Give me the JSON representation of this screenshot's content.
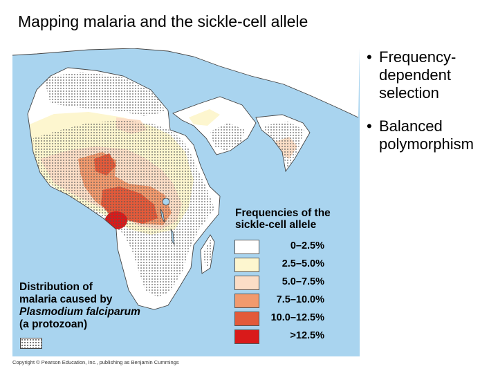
{
  "title": "Mapping malaria and the sickle-cell allele",
  "bullets": [
    {
      "line1": "Frequency-",
      "line2": "dependent",
      "line3": "selection"
    },
    {
      "line1": "Balanced",
      "line2": "polymorphism",
      "line3": ""
    }
  ],
  "legend": {
    "title_line1": "Frequencies of the",
    "title_line2": "sickle-cell allele",
    "items": [
      {
        "range": "0–2.5%",
        "color": "#ffffff"
      },
      {
        "range": "2.5–5.0%",
        "color": "#fdf6cf"
      },
      {
        "range": "5.0–7.5%",
        "color": "#fbddc6"
      },
      {
        "range": "7.5–10.0%",
        "color": "#f19a6e"
      },
      {
        "range": "10.0–12.5%",
        "color": "#e35a3a"
      },
      {
        "range": ">12.5%",
        "color": "#d91a1a"
      }
    ]
  },
  "malaria_key": {
    "line1": "Distribution of",
    "line2": "malaria caused by",
    "line3": "Plasmodium falciparum",
    "line4": "(a protozoan)"
  },
  "copyright": "Copyright © Pearson Education, Inc., publishing as Benjamin Cummings",
  "colors": {
    "water": "#a9d4ef",
    "land": "#ffffff",
    "dots": "#555555"
  }
}
